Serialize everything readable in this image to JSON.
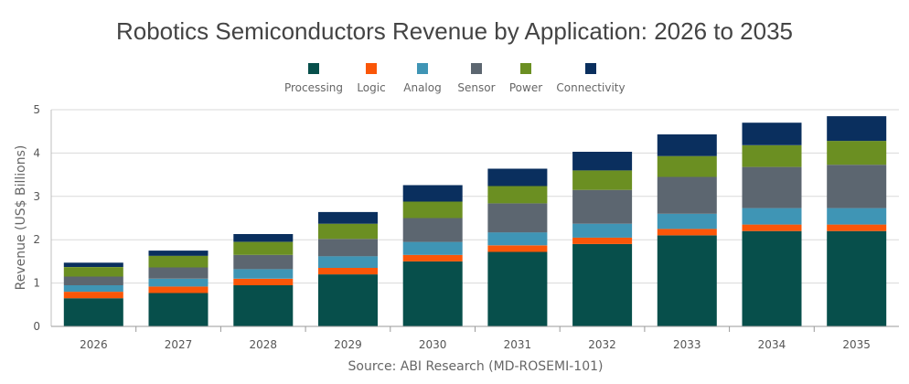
{
  "chart_data": {
    "type": "bar",
    "stacked": true,
    "title": "Robotics Semiconductors Revenue by Application: 2026 to 2035",
    "ylabel": "Revenue (US$ Billions)",
    "source": "Source: ABI Research (MD-ROSEMI-101)",
    "ylim": [
      0,
      5
    ],
    "yticks": [
      "0",
      "1",
      "2",
      "3",
      "4",
      "5"
    ],
    "grid": true,
    "legend_position": "top",
    "categories": [
      "2026",
      "2027",
      "2028",
      "2029",
      "2030",
      "2031",
      "2032",
      "2033",
      "2034",
      "2035"
    ],
    "series": [
      {
        "name": "Processing",
        "color": "#074f4b",
        "values": [
          0.65,
          0.77,
          0.95,
          1.2,
          1.5,
          1.72,
          1.9,
          2.1,
          2.2,
          2.2
        ]
      },
      {
        "name": "Logic",
        "color": "#fa5608",
        "values": [
          0.15,
          0.15,
          0.15,
          0.15,
          0.15,
          0.15,
          0.15,
          0.15,
          0.15,
          0.15
        ]
      },
      {
        "name": "Analog",
        "color": "#3f95b5",
        "values": [
          0.15,
          0.18,
          0.22,
          0.27,
          0.3,
          0.3,
          0.32,
          0.35,
          0.38,
          0.38
        ]
      },
      {
        "name": "Sensor",
        "color": "#5c6670",
        "values": [
          0.2,
          0.26,
          0.33,
          0.4,
          0.55,
          0.67,
          0.78,
          0.85,
          0.95,
          1.0
        ]
      },
      {
        "name": "Power",
        "color": "#6b8f22",
        "values": [
          0.22,
          0.27,
          0.3,
          0.35,
          0.38,
          0.4,
          0.45,
          0.48,
          0.5,
          0.55
        ]
      },
      {
        "name": "Connectivity",
        "color": "#0a2f5e",
        "values": [
          0.1,
          0.12,
          0.18,
          0.27,
          0.38,
          0.4,
          0.43,
          0.5,
          0.52,
          0.57
        ]
      }
    ]
  }
}
